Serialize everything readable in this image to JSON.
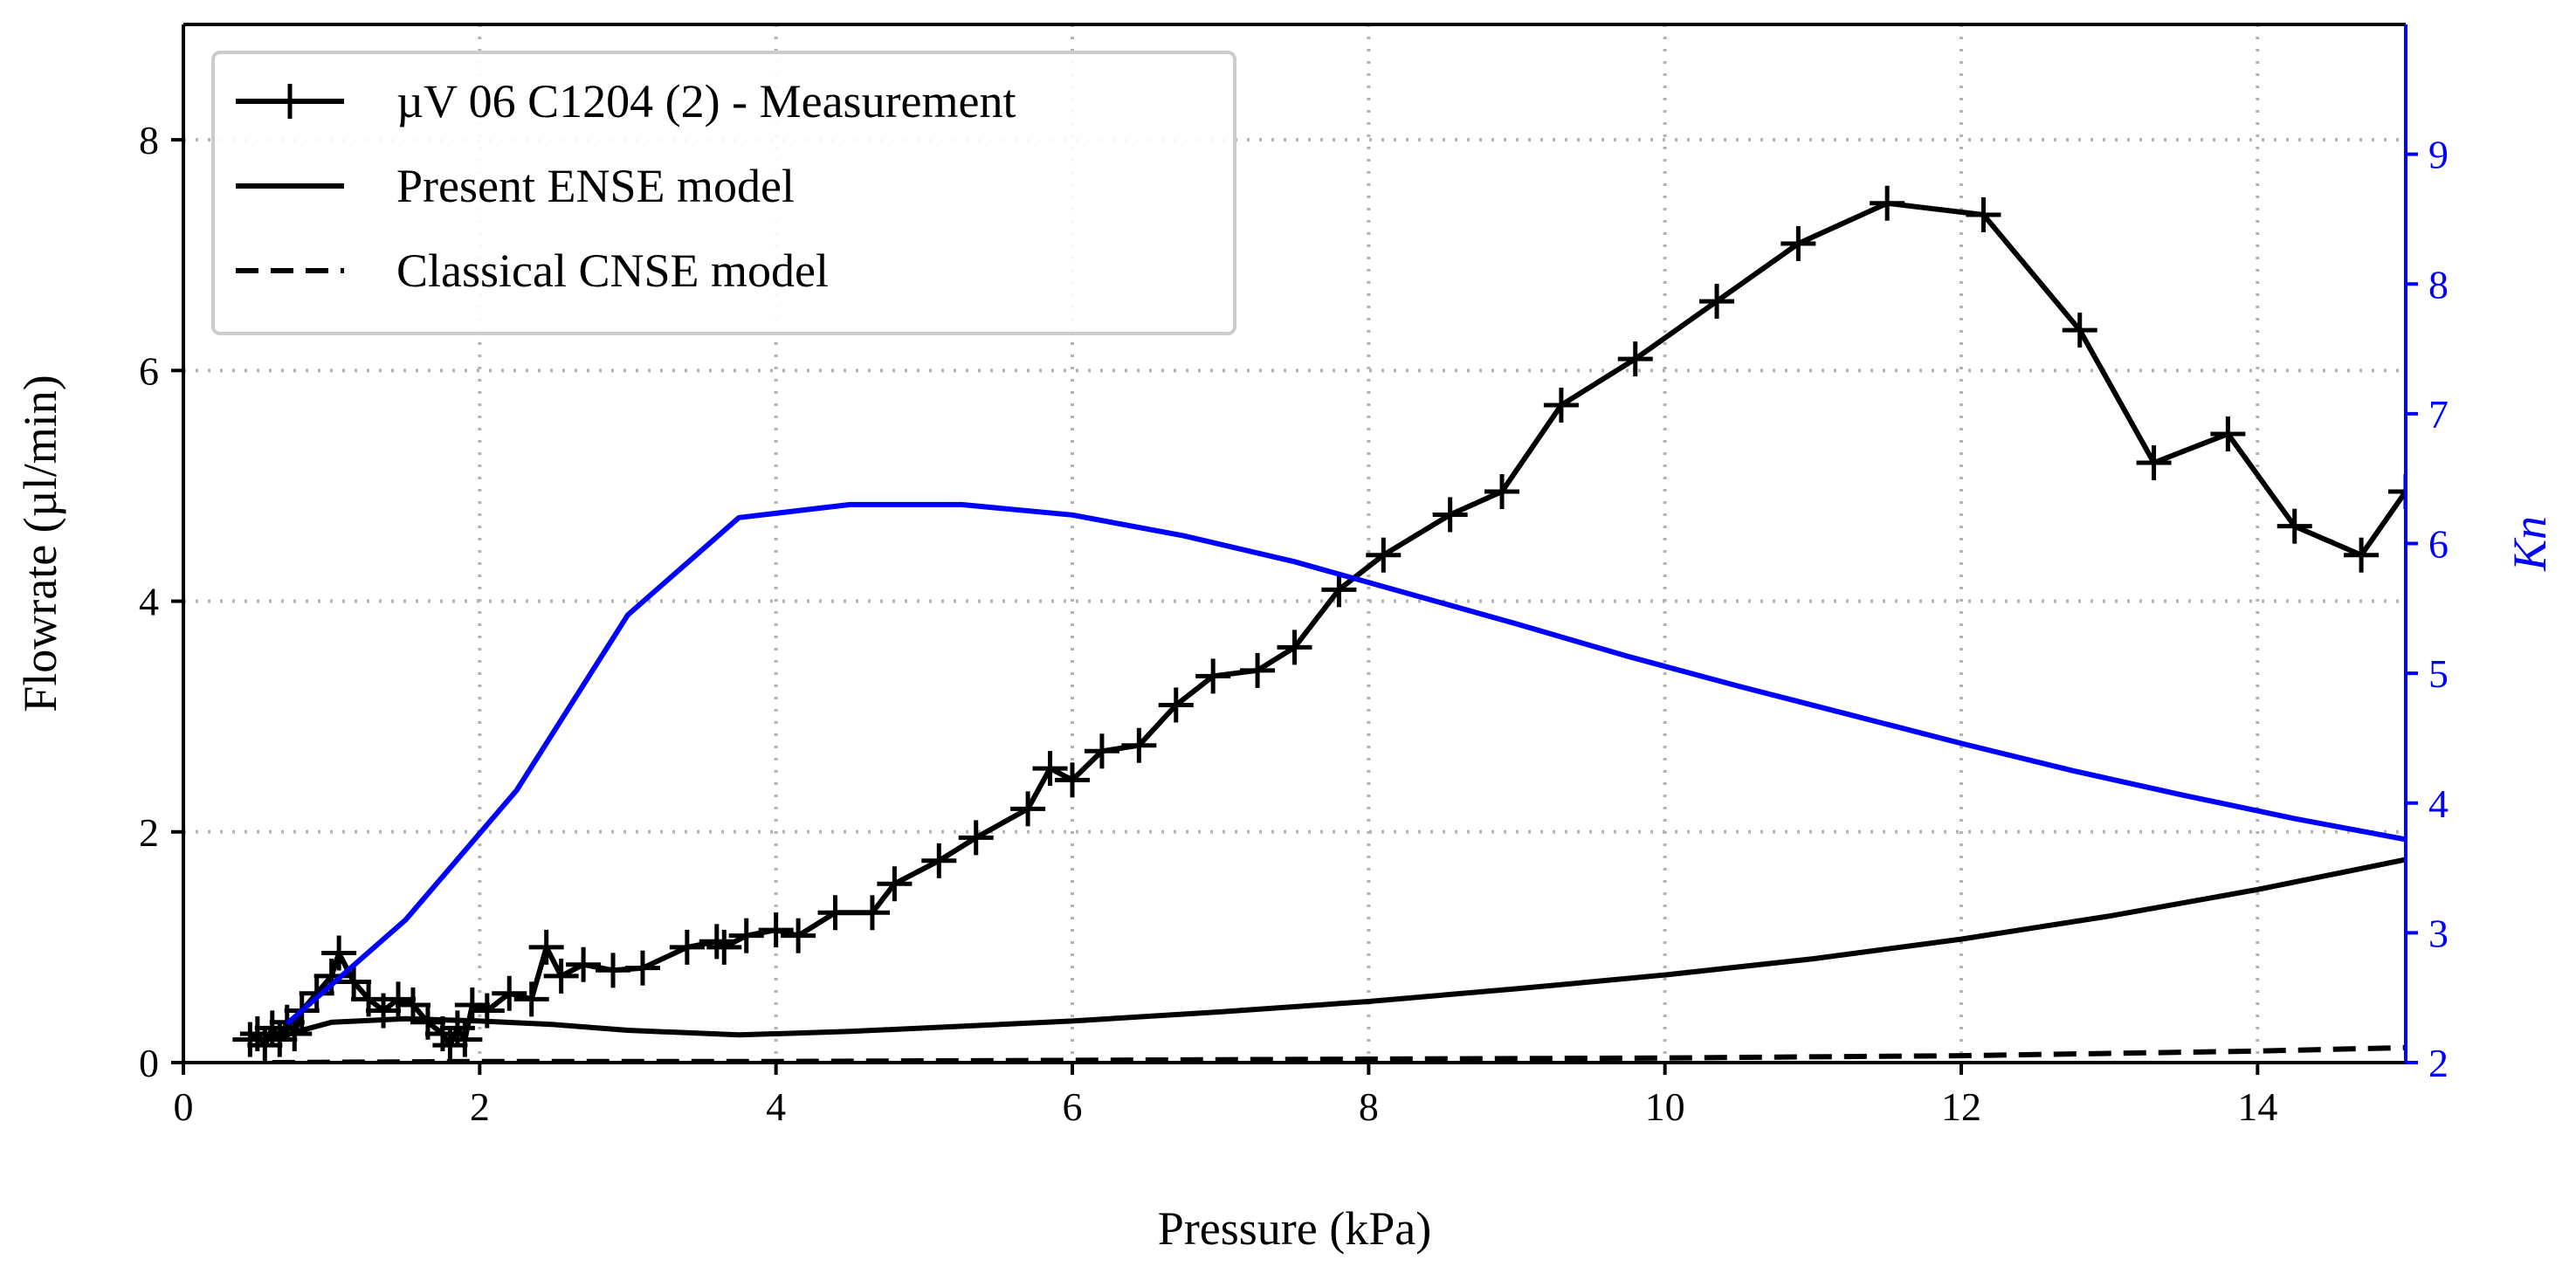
{
  "chart_data": {
    "type": "line",
    "title": "",
    "xlabel": "Pressure (kPa)",
    "ylabel": "Flowrate (µl/min)",
    "y2label": "Kn",
    "xlim": [
      0,
      15
    ],
    "ylim": [
      0,
      9
    ],
    "y2lim": [
      2,
      10
    ],
    "grid": true,
    "legend_position": "top-left",
    "x_ticks": [
      "0",
      "2",
      "4",
      "6",
      "8",
      "10",
      "12",
      "14"
    ],
    "y_ticks": [
      "0",
      "2",
      "4",
      "6",
      "8"
    ],
    "y2_ticks": [
      "2",
      "3",
      "4",
      "5",
      "6",
      "7",
      "8",
      "9"
    ],
    "colors": {
      "primary": "#000000",
      "kn": "#0000ff",
      "grid": "#b3b3b3"
    },
    "series": [
      {
        "name": "µV 06 C1204 (2) - Measurement",
        "axis": "left",
        "style": "solid-plus-markers",
        "x": [
          0.45,
          0.5,
          0.55,
          0.6,
          0.65,
          0.7,
          0.75,
          0.8,
          0.9,
          1.0,
          1.05,
          1.15,
          1.25,
          1.35,
          1.45,
          1.55,
          1.65,
          1.75,
          1.8,
          1.85,
          1.9,
          1.95,
          2.05,
          2.2,
          2.35,
          2.45,
          2.55,
          2.7,
          2.9,
          3.1,
          3.4,
          3.6,
          3.65,
          3.8,
          4.0,
          4.15,
          4.4,
          4.65,
          4.8,
          5.1,
          5.35,
          5.7,
          5.85,
          6.0,
          6.2,
          6.45,
          6.7,
          6.95,
          7.25,
          7.5,
          7.8,
          8.1,
          8.55,
          8.9,
          9.3,
          9.8,
          10.35,
          10.9,
          11.5,
          12.15,
          12.8,
          13.3,
          13.8,
          14.25,
          14.7,
          15.0
        ],
        "y": [
          0.2,
          0.25,
          0.15,
          0.3,
          0.2,
          0.35,
          0.25,
          0.45,
          0.6,
          0.75,
          0.95,
          0.7,
          0.55,
          0.45,
          0.55,
          0.5,
          0.35,
          0.25,
          0.15,
          0.3,
          0.2,
          0.5,
          0.45,
          0.6,
          0.55,
          1.0,
          0.75,
          0.85,
          0.8,
          0.82,
          1.0,
          1.05,
          1.0,
          1.1,
          1.15,
          1.1,
          1.3,
          1.3,
          1.55,
          1.75,
          1.95,
          2.2,
          2.55,
          2.45,
          2.7,
          2.75,
          3.1,
          3.35,
          3.4,
          3.6,
          4.1,
          4.4,
          4.75,
          4.95,
          5.7,
          6.1,
          6.6,
          7.1,
          7.45,
          7.35,
          6.35,
          5.2,
          5.45,
          4.65,
          4.4,
          4.95
        ]
      },
      {
        "name": "Present ENSE model",
        "axis": "left",
        "style": "solid",
        "x": [
          0.6,
          0.8,
          1.0,
          1.5,
          2.0,
          2.5,
          3.0,
          3.75,
          4.5,
          5.0,
          6.0,
          7.0,
          8.0,
          9.0,
          10.0,
          11.0,
          12.0,
          13.0,
          14.0,
          15.0
        ],
        "y": [
          0.2,
          0.28,
          0.35,
          0.38,
          0.36,
          0.33,
          0.28,
          0.24,
          0.27,
          0.3,
          0.36,
          0.44,
          0.53,
          0.64,
          0.76,
          0.9,
          1.07,
          1.27,
          1.5,
          1.76
        ]
      },
      {
        "name": "Classical CNSE model",
        "axis": "left",
        "style": "dashed",
        "x": [
          0.6,
          2.0,
          4.0,
          6.0,
          8.0,
          10.0,
          12.0,
          14.0,
          15.0
        ],
        "y": [
          0.0,
          0.01,
          0.01,
          0.02,
          0.03,
          0.04,
          0.06,
          0.1,
          0.13
        ]
      },
      {
        "name": "Kn",
        "axis": "right",
        "style": "solid",
        "x": [
          0.7,
          1.0,
          1.5,
          2.25,
          3.0,
          3.75,
          4.5,
          5.25,
          6.0,
          6.75,
          7.5,
          8.25,
          9.0,
          9.75,
          10.5,
          11.25,
          12.0,
          12.75,
          13.5,
          14.25,
          15.0
        ],
        "y": [
          2.3,
          2.6,
          3.1,
          4.1,
          5.45,
          6.2,
          6.3,
          6.3,
          6.22,
          6.06,
          5.86,
          5.62,
          5.38,
          5.13,
          4.9,
          4.68,
          4.46,
          4.25,
          4.06,
          3.88,
          3.72
        ]
      }
    ]
  }
}
